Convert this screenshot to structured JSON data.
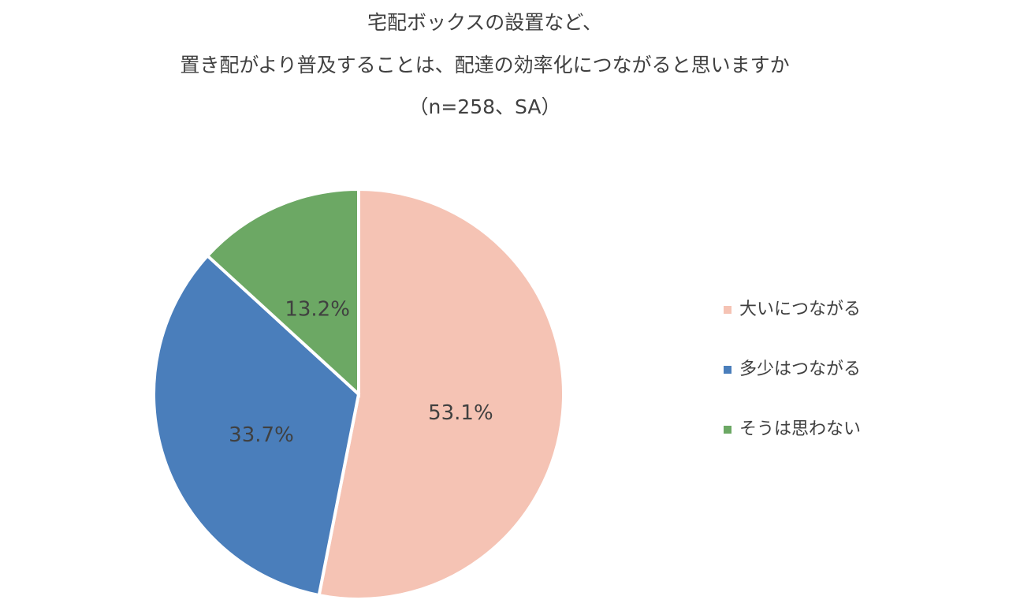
{
  "chart_data": {
    "type": "pie",
    "title": [
      "宅配ボックスの設置など、",
      "置き配がより普及することは、配達の効率化につながると思いますか",
      "（n=258、SA）"
    ],
    "categories": [
      "大いにつながる",
      "多少はつながる",
      "そうは思わない"
    ],
    "values": [
      53.1,
      33.7,
      13.2
    ],
    "value_labels": [
      "53.1%",
      "33.7%",
      "13.2%"
    ],
    "colors": [
      "#f5c3b4",
      "#4a7ebb",
      "#6ca864"
    ],
    "legend": "right"
  }
}
